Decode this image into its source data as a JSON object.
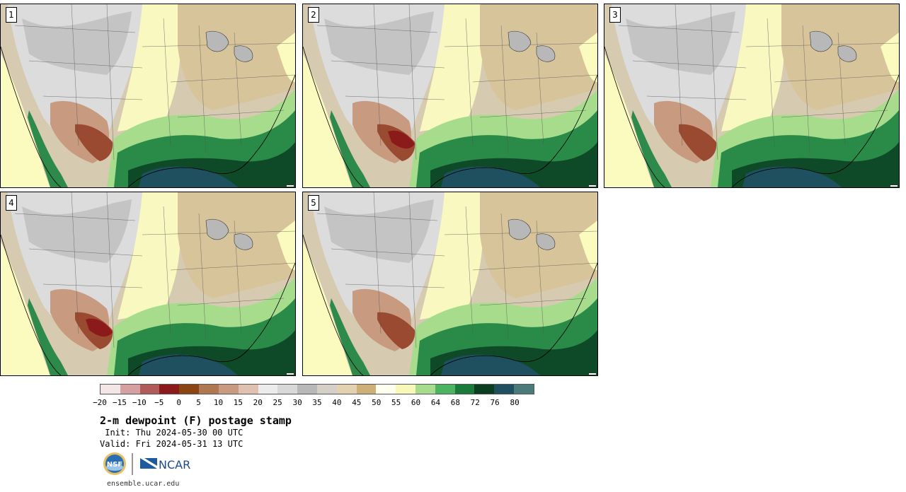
{
  "panels": [
    {
      "label": "1"
    },
    {
      "label": "2"
    },
    {
      "label": "3"
    },
    {
      "label": "4"
    },
    {
      "label": "5"
    }
  ],
  "colorbar": {
    "colors": [
      "#f4e6e6",
      "#d6a0a0",
      "#b05a5a",
      "#8b1a1a",
      "#8b4513",
      "#b07850",
      "#c89a80",
      "#e0c0b0",
      "#ececec",
      "#d8d8d8",
      "#b8b8b8",
      "#d4d0c8",
      "#e2d2b0",
      "#cdb078",
      "#fffff0",
      "#f8f8b8",
      "#a6dc8c",
      "#4cb460",
      "#1a7a3a",
      "#0b3d20",
      "#1e5060",
      "#4a7a7a"
    ],
    "tick_labels": [
      "−20",
      "−15",
      "−10",
      "−5",
      "0",
      "5",
      "10",
      "15",
      "20",
      "25",
      "30",
      "35",
      "40",
      "45",
      "50",
      "55",
      "60",
      "64",
      "68",
      "72",
      "76",
      "80"
    ]
  },
  "title": "2-m dewpoint (F) postage stamp",
  "init": " Init: Thu 2024-05-30 00 UTC",
  "valid": "Valid: Fri 2024-05-31 13 UTC",
  "logos": {
    "nsf_text": "NSF",
    "ncar_text": "NCAR"
  },
  "url": "ensemble.ucar.edu"
}
